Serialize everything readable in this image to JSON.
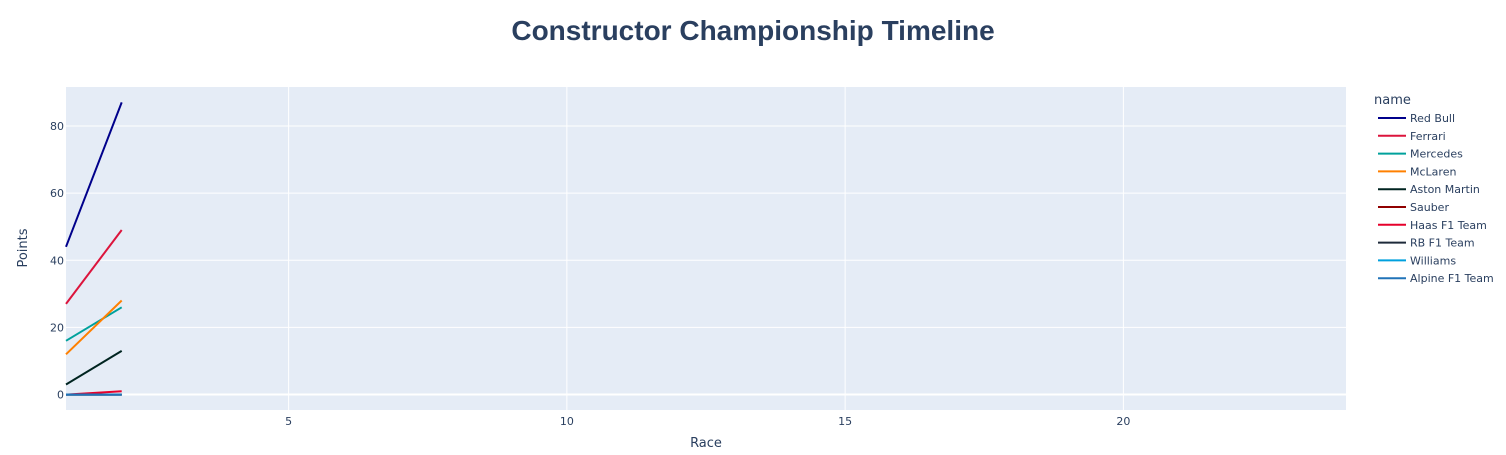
{
  "chart_data": {
    "type": "line",
    "title": "Constructor Championship Timeline",
    "xlabel": "Race",
    "ylabel": "Points",
    "xlim": [
      1,
      24
    ],
    "ylim": [
      -4.6,
      91.6
    ],
    "x_ticks": [
      5,
      10,
      15,
      20
    ],
    "y_ticks": [
      0,
      20,
      40,
      60,
      80
    ],
    "grid": true,
    "plot_bg": "#e5ecf6",
    "legend_title": "name",
    "legend_position": "right",
    "series": [
      {
        "name": "Red Bull",
        "color": "#00008b",
        "x": [
          1,
          2
        ],
        "y": [
          44,
          87
        ]
      },
      {
        "name": "Ferrari",
        "color": "#dc143c",
        "x": [
          1,
          2
        ],
        "y": [
          27,
          49
        ]
      },
      {
        "name": "Mercedes",
        "color": "#00a19c",
        "x": [
          1,
          2
        ],
        "y": [
          16,
          26
        ]
      },
      {
        "name": "McLaren",
        "color": "#ff8000",
        "x": [
          1,
          2
        ],
        "y": [
          12,
          28
        ]
      },
      {
        "name": "Aston Martin",
        "color": "#002420",
        "x": [
          1,
          2
        ],
        "y": [
          3,
          13
        ]
      },
      {
        "name": "Sauber",
        "color": "#900000",
        "x": [
          1,
          2
        ],
        "y": [
          0,
          0
        ]
      },
      {
        "name": "Haas F1 Team",
        "color": "#e6002b",
        "x": [
          1,
          2
        ],
        "y": [
          0,
          1
        ]
      },
      {
        "name": "RB F1 Team",
        "color": "#1e2a3a",
        "x": [
          1,
          2
        ],
        "y": [
          0,
          0
        ]
      },
      {
        "name": "Williams",
        "color": "#00a0de",
        "x": [
          1,
          2
        ],
        "y": [
          0,
          0
        ]
      },
      {
        "name": "Alpine F1 Team",
        "color": "#2173b8",
        "x": [
          1,
          2
        ],
        "y": [
          0,
          0
        ]
      }
    ]
  }
}
